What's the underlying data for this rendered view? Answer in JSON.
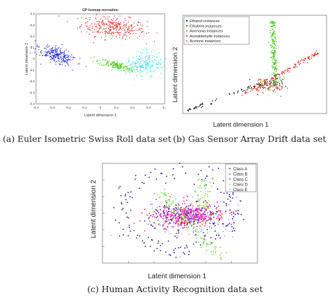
{
  "chart_data": [
    {
      "type": "scatter",
      "title": "GP-Isomap recreation",
      "xlabel": "Latent dimension 1",
      "ylabel": "Latent dimension 2",
      "xlim": [
        -0.4,
        0.4
      ],
      "ylim": [
        -0.4,
        0.4
      ],
      "xticks": [
        "-0.4",
        "-0.3",
        "-0.2",
        "-0.1",
        "0",
        "0.1",
        "0.2",
        "0.3",
        "0.4"
      ],
      "yticks": [
        "0.4",
        "0.3",
        "0.2",
        "0.1",
        "0",
        "-0.1",
        "-0.2",
        "-0.3",
        "-0.4"
      ],
      "grid": false,
      "series": [
        {
          "color": "#e4231f",
          "cluster": {
            "cx": 0.08,
            "cy": 0.28,
            "sx": 0.1,
            "sy": 0.045,
            "rot": -8,
            "n": 320
          }
        },
        {
          "color": "#1d2bd6",
          "cluster": {
            "cx": -0.27,
            "cy": 0.03,
            "sx": 0.065,
            "sy": 0.03,
            "rot": -35,
            "n": 260
          }
        },
        {
          "color": "#45c71a",
          "cluster": {
            "cx": 0.1,
            "cy": -0.06,
            "sx": 0.06,
            "sy": 0.017,
            "rot": -22,
            "n": 170
          }
        },
        {
          "color": "#2fe4e6",
          "cluster": {
            "cx": 0.27,
            "cy": -0.05,
            "sx": 0.06,
            "sy": 0.05,
            "rot": 40,
            "n": 220
          }
        }
      ]
    },
    {
      "type": "scatter",
      "xlabel": "Latent dimension 1",
      "ylabel": "Latent dimension 2",
      "legend_position": "top-left",
      "grid": false,
      "series": [
        {
          "name": "Ethanol instances",
          "color": "#1a1a1a"
        },
        {
          "name": "Ethylene instances",
          "color": "#e4231f"
        },
        {
          "name": "Ammonia instances",
          "color": "#45c71a"
        },
        {
          "name": "Acetaldehyde instances",
          "color": "#9b3fd1"
        },
        {
          "name": "Acetone instances",
          "color": "#f28c2a"
        }
      ]
    },
    {
      "type": "scatter",
      "xlabel": "Latent dimension 1",
      "ylabel": "Latent dimension 2",
      "legend_position": "top-right",
      "grid": false,
      "series": [
        {
          "name": "Class A",
          "color": "#2b1f8f"
        },
        {
          "name": "Class B",
          "color": "#e4231f"
        },
        {
          "name": "Class C",
          "color": "#e31ad6"
        },
        {
          "name": "Class D",
          "color": "#7fdc4a"
        },
        {
          "name": "Class E",
          "color": "#8fb0e6"
        }
      ]
    }
  ],
  "captions": {
    "a": "(a) Euler Isometric Swiss Roll data set",
    "b": "(b) Gas Sensor Array Drift data set",
    "c": "(c) Human Activity Recognition data set"
  }
}
